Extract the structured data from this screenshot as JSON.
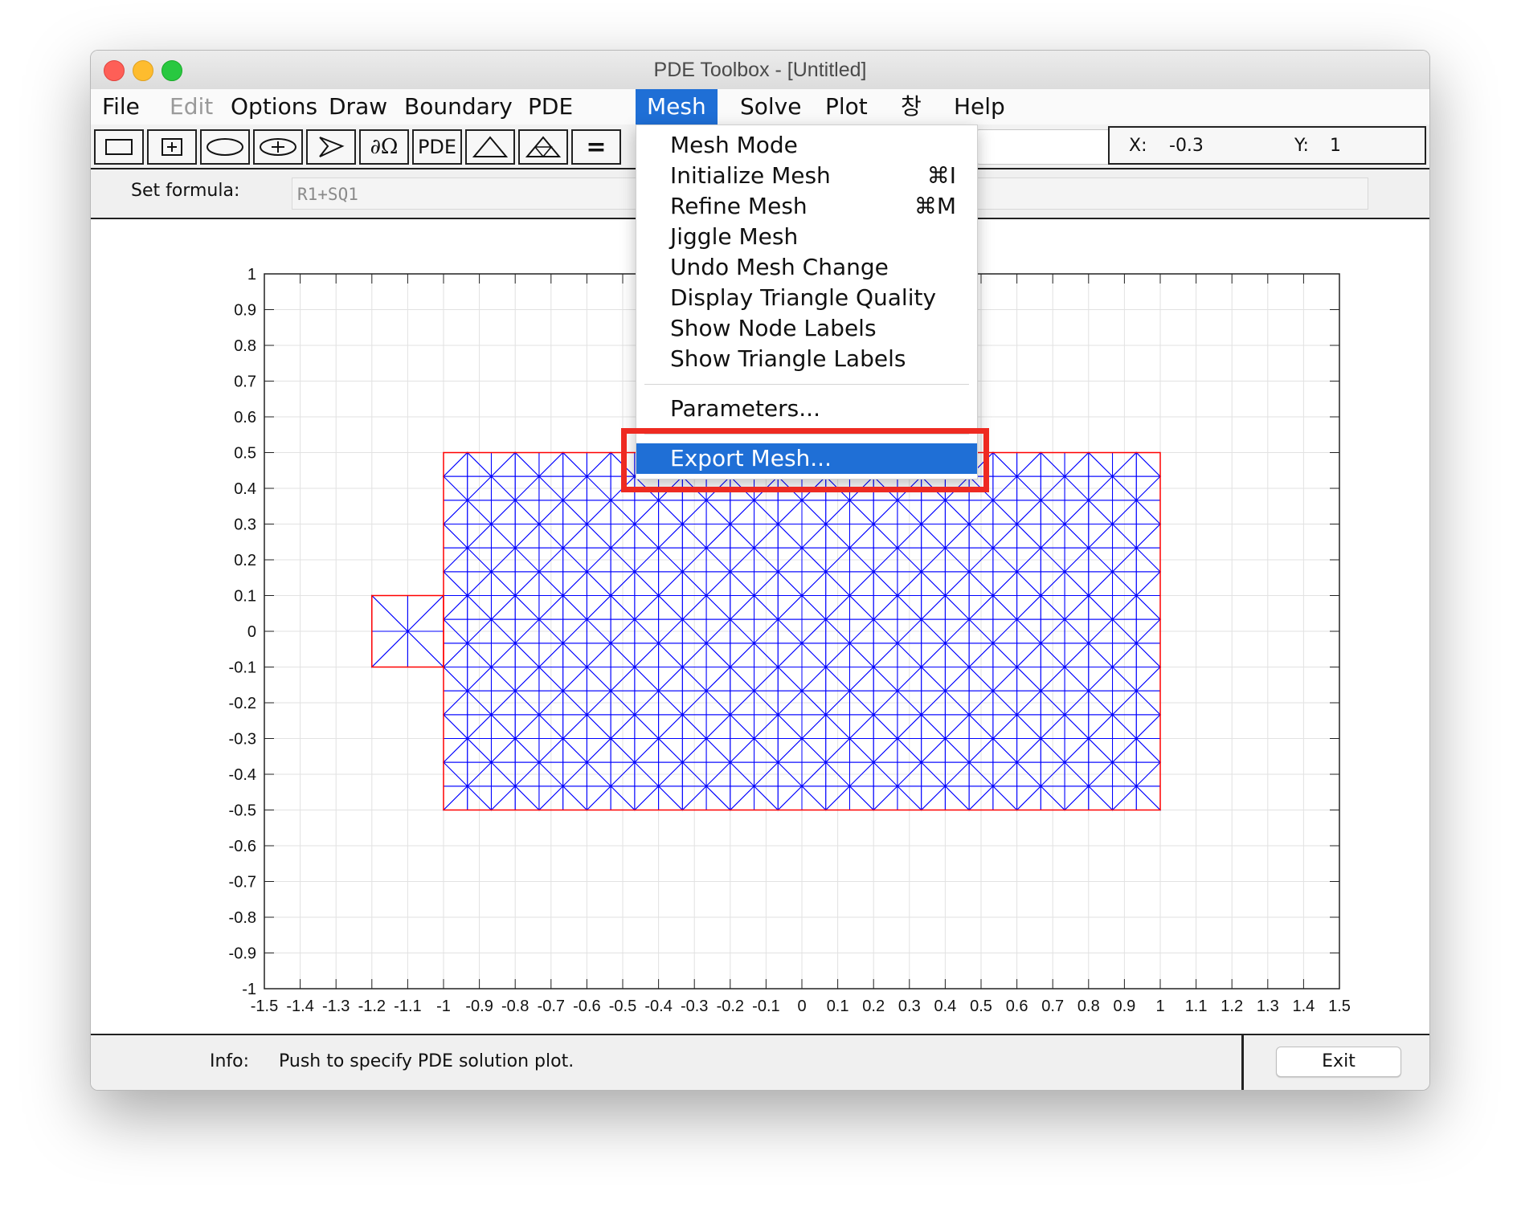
{
  "window": {
    "title": "PDE Toolbox - [Untitled]"
  },
  "menubar": [
    {
      "label": "File",
      "state": "normal"
    },
    {
      "label": "Edit",
      "state": "disabled"
    },
    {
      "label": "Options",
      "state": "normal"
    },
    {
      "label": "Draw",
      "state": "normal"
    },
    {
      "label": "Boundary",
      "state": "normal"
    },
    {
      "label": "PDE",
      "state": "normal"
    },
    {
      "label": "Mesh",
      "state": "active"
    },
    {
      "label": "Solve",
      "state": "normal"
    },
    {
      "label": "Plot",
      "state": "normal"
    },
    {
      "label": "창",
      "state": "normal"
    },
    {
      "label": "Help",
      "state": "normal"
    }
  ],
  "toolbar": {
    "tools": [
      {
        "name": "rectangle-tool-icon"
      },
      {
        "name": "centered-rectangle-tool-icon"
      },
      {
        "name": "ellipse-tool-icon"
      },
      {
        "name": "centered-ellipse-tool-icon"
      },
      {
        "name": "polygon-tool-icon"
      },
      {
        "name": "boundary-mode-icon",
        "text": "∂Ω"
      },
      {
        "name": "pde-spec-button",
        "text": "PDE"
      },
      {
        "name": "init-mesh-icon"
      },
      {
        "name": "refine-mesh-icon"
      },
      {
        "name": "solve-icon",
        "text": "="
      }
    ],
    "coords": {
      "x_label": "X:",
      "x_value": "-0.3",
      "y_label": "Y:",
      "y_value": "1"
    }
  },
  "formula": {
    "label": "Set formula:",
    "value": "R1+SQ1"
  },
  "mesh_menu": {
    "items": [
      {
        "label": "Mesh Mode",
        "shortcut": ""
      },
      {
        "label": "Initialize Mesh",
        "shortcut": "⌘I"
      },
      {
        "label": "Refine Mesh",
        "shortcut": "⌘M"
      },
      {
        "label": "Jiggle Mesh",
        "shortcut": ""
      },
      {
        "label": "Undo Mesh Change",
        "shortcut": ""
      },
      {
        "label": "Display Triangle Quality",
        "shortcut": ""
      },
      {
        "label": "Show Node Labels",
        "shortcut": ""
      },
      {
        "label": "Show Triangle Labels",
        "shortcut": ""
      },
      {
        "label": "Parameters...",
        "shortcut": ""
      },
      {
        "label": "Export Mesh...",
        "shortcut": "",
        "highlighted": true
      }
    ]
  },
  "chart_data": {
    "type": "mesh",
    "xlim": [
      -1.5,
      1.5
    ],
    "ylim": [
      -1,
      1
    ],
    "x_ticks": [
      "-1.5",
      "-1.4",
      "-1.3",
      "-1.2",
      "-1.1",
      "-1",
      "-0.9",
      "-0.8",
      "-0.7",
      "-0.6",
      "-0.5",
      "-0.4",
      "-0.3",
      "-0.2",
      "-0.1",
      "0",
      "0.1",
      "0.2",
      "0.3",
      "0.4",
      "0.5",
      "0.6",
      "0.7",
      "0.8",
      "0.9",
      "1",
      "1.1",
      "1.2",
      "1.3",
      "1.4",
      "1.5"
    ],
    "y_ticks": [
      "-1",
      "-0.9",
      "-0.8",
      "-0.7",
      "-0.6",
      "-0.5",
      "-0.4",
      "-0.3",
      "-0.2",
      "-0.1",
      "0",
      "0.1",
      "0.2",
      "0.3",
      "0.4",
      "0.5",
      "0.6",
      "0.7",
      "0.8",
      "0.9",
      "1"
    ],
    "grid": true,
    "regions": [
      {
        "name": "R1",
        "x": [
          -1,
          1
        ],
        "y": [
          -0.5,
          0.5
        ],
        "edge_color": "#ff0000"
      },
      {
        "name": "SQ1",
        "x": [
          -1.2,
          -1
        ],
        "y": [
          -0.1,
          0.1
        ],
        "edge_color": "#ff0000"
      }
    ],
    "mesh_color": "#0000ff"
  },
  "status": {
    "info_label": "Info:",
    "info_text": "Push to specify PDE solution plot.",
    "exit_label": "Exit"
  },
  "colors": {
    "accent": "#1f6fd6",
    "highlight_box": "#ee2a21",
    "mesh": "#0000ff",
    "boundary": "#ff0000"
  }
}
